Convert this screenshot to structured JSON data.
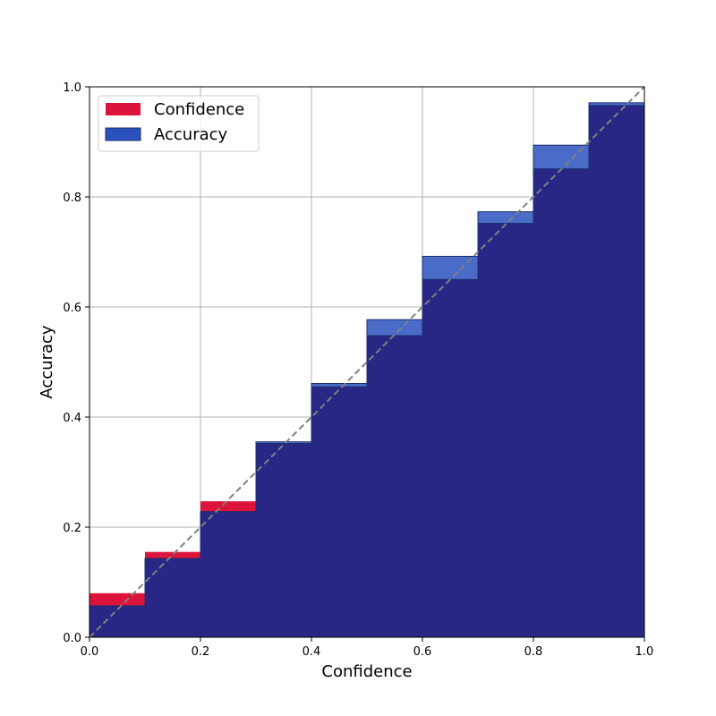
{
  "chart_data": {
    "type": "bar",
    "title": "",
    "xlabel": "Confidence",
    "ylabel": "Accuracy",
    "xlim": [
      0.0,
      1.0
    ],
    "ylim": [
      0.0,
      1.0
    ],
    "xticks": [
      "0.0",
      "0.2",
      "0.4",
      "0.6",
      "0.8",
      "1.0"
    ],
    "yticks": [
      "0.0",
      "0.2",
      "0.4",
      "0.6",
      "0.8",
      "1.0"
    ],
    "grid": true,
    "legend_position": "top-left",
    "bin_edges": [
      0.0,
      0.1,
      0.2,
      0.3,
      0.4,
      0.5,
      0.6,
      0.7,
      0.8,
      0.9,
      1.0
    ],
    "series": [
      {
        "name": "Confidence",
        "color": "#DC143C",
        "values": [
          0.08,
          0.155,
          0.247,
          0.352,
          0.455,
          0.548,
          0.65,
          0.752,
          0.851,
          0.966
        ]
      },
      {
        "name": "Accuracy",
        "color": "#2A52BE",
        "values": [
          0.057,
          0.143,
          0.228,
          0.355,
          0.461,
          0.577,
          0.692,
          0.773,
          0.894,
          0.971
        ]
      }
    ],
    "overlap_color": "#282785",
    "reference_line": {
      "style": "dashed",
      "color": "#808080",
      "from": [
        0,
        0
      ],
      "to": [
        1,
        1
      ]
    }
  }
}
